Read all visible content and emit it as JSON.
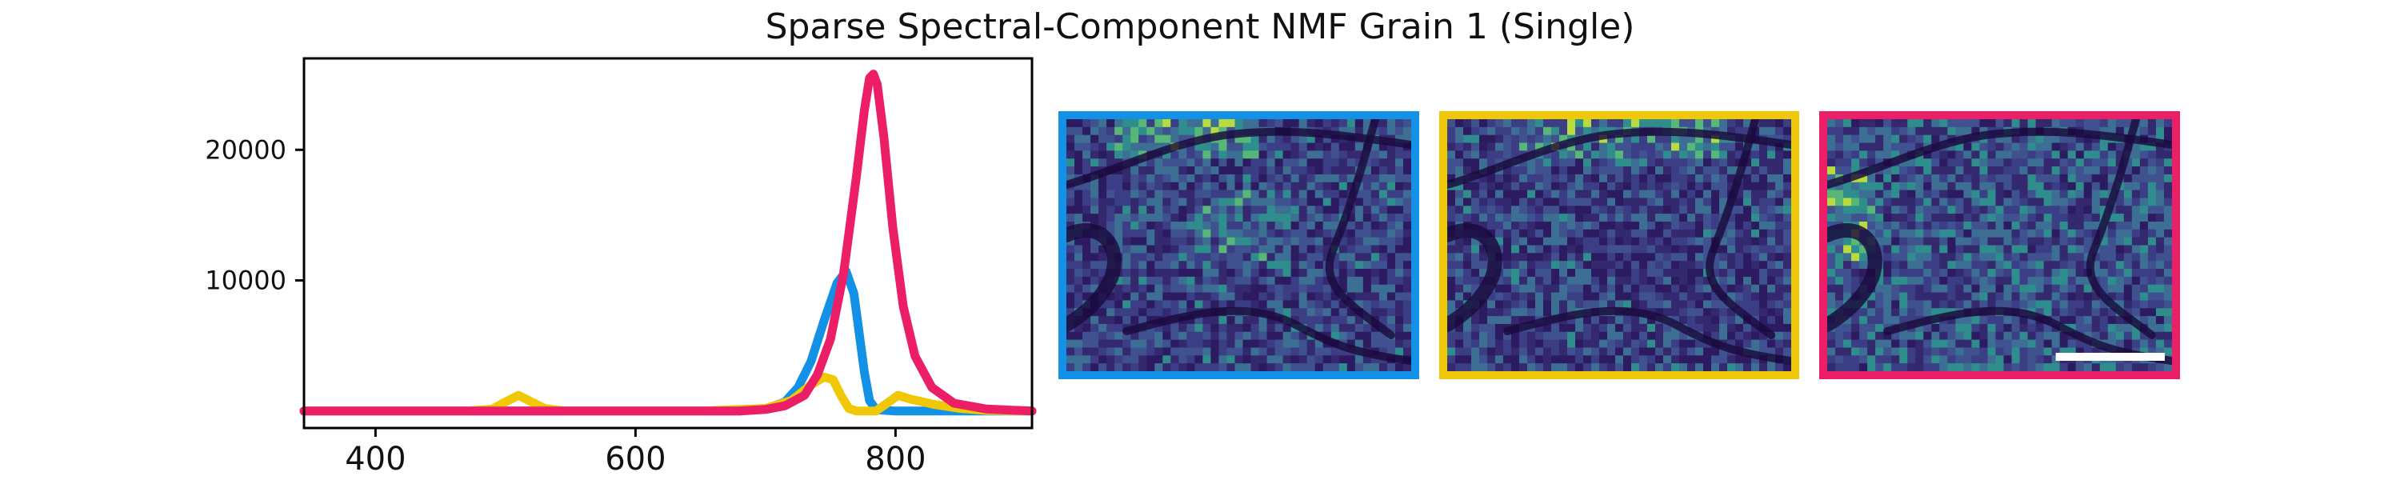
{
  "title": "Sparse Spectral-Component NMF Grain 1 (Single)",
  "chart_data": {
    "type": "line",
    "title": "Sparse Spectral-Component NMF Grain 1 (Single)",
    "xlabel": "",
    "ylabel": "",
    "xlim": [
      345,
      905
    ],
    "ylim": [
      -1300,
      27000
    ],
    "x_ticks": [
      400,
      600,
      800
    ],
    "y_ticks": [
      10000,
      20000
    ],
    "grid": false,
    "legend": "none",
    "series": [
      {
        "color": "#1291e6",
        "points": [
          [
            345,
            0
          ],
          [
            400,
            0
          ],
          [
            500,
            0
          ],
          [
            600,
            0
          ],
          [
            680,
            0
          ],
          [
            700,
            150
          ],
          [
            715,
            700
          ],
          [
            725,
            1800
          ],
          [
            735,
            3800
          ],
          [
            745,
            6900
          ],
          [
            755,
            9800
          ],
          [
            762,
            10700
          ],
          [
            768,
            9000
          ],
          [
            772,
            6000
          ],
          [
            776,
            3000
          ],
          [
            780,
            800
          ],
          [
            785,
            100
          ],
          [
            800,
            0
          ],
          [
            905,
            0
          ]
        ]
      },
      {
        "color": "#f0c808",
        "points": [
          [
            345,
            0
          ],
          [
            470,
            0
          ],
          [
            490,
            150
          ],
          [
            500,
            700
          ],
          [
            510,
            1200
          ],
          [
            520,
            700
          ],
          [
            530,
            200
          ],
          [
            545,
            0
          ],
          [
            650,
            0
          ],
          [
            700,
            200
          ],
          [
            720,
            800
          ],
          [
            735,
            2000
          ],
          [
            745,
            2600
          ],
          [
            752,
            2400
          ],
          [
            758,
            1200
          ],
          [
            764,
            200
          ],
          [
            770,
            0
          ],
          [
            785,
            0
          ],
          [
            795,
            700
          ],
          [
            802,
            1200
          ],
          [
            812,
            900
          ],
          [
            830,
            500
          ],
          [
            850,
            200
          ],
          [
            870,
            50
          ],
          [
            905,
            0
          ]
        ]
      },
      {
        "color": "#ec1e67",
        "points": [
          [
            345,
            0
          ],
          [
            600,
            0
          ],
          [
            680,
            0
          ],
          [
            700,
            120
          ],
          [
            715,
            400
          ],
          [
            730,
            1200
          ],
          [
            740,
            2800
          ],
          [
            750,
            5500
          ],
          [
            760,
            10500
          ],
          [
            770,
            18000
          ],
          [
            776,
            23000
          ],
          [
            780,
            25500
          ],
          [
            783,
            25800
          ],
          [
            786,
            25000
          ],
          [
            791,
            21000
          ],
          [
            798,
            14000
          ],
          [
            806,
            8000
          ],
          [
            815,
            4200
          ],
          [
            828,
            1800
          ],
          [
            845,
            600
          ],
          [
            870,
            150
          ],
          [
            905,
            0
          ]
        ]
      }
    ]
  },
  "maps": [
    {
      "color": "#1291e6",
      "scale_bar": false
    },
    {
      "color": "#f0c808",
      "scale_bar": false
    },
    {
      "color": "#ec1e67",
      "scale_bar": true
    }
  ]
}
